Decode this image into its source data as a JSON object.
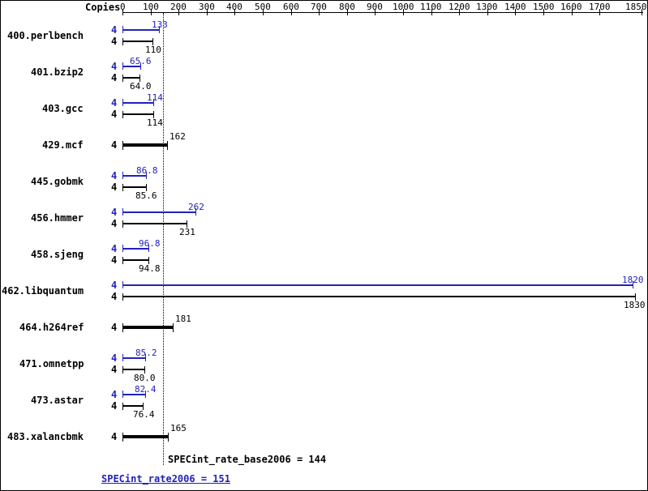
{
  "chart_data": {
    "type": "bar",
    "orientation": "horizontal",
    "copies_label": "Copies",
    "xlim": [
      0,
      1850
    ],
    "axis_ticks": [
      0,
      100,
      200,
      300,
      400,
      500,
      600,
      700,
      800,
      900,
      1000,
      1100,
      1200,
      1300,
      1400,
      1500,
      1600,
      1700,
      1850
    ],
    "colors": {
      "peak": "#2222bb",
      "base": "#000000"
    },
    "benchmarks": [
      {
        "name": "400.perlbench",
        "copies": 4,
        "peak": 133,
        "peak_label": "133",
        "base": 110,
        "base_label": "110"
      },
      {
        "name": "401.bzip2",
        "copies": 4,
        "peak": 65.6,
        "peak_label": "65.6",
        "base": 64.0,
        "base_label": "64.0"
      },
      {
        "name": "403.gcc",
        "copies": 4,
        "peak": 114,
        "peak_label": "114",
        "base": 114,
        "base_label": "114"
      },
      {
        "name": "429.mcf",
        "copies": 4,
        "basepeak": 162,
        "basepeak_label": "162"
      },
      {
        "name": "445.gobmk",
        "copies": 4,
        "peak": 86.8,
        "peak_label": "86.8",
        "base": 85.6,
        "base_label": "85.6"
      },
      {
        "name": "456.hmmer",
        "copies": 4,
        "peak": 262,
        "peak_label": "262",
        "base": 231,
        "base_label": "231"
      },
      {
        "name": "458.sjeng",
        "copies": 4,
        "peak": 96.8,
        "peak_label": "96.8",
        "base": 94.8,
        "base_label": "94.8"
      },
      {
        "name": "462.libquantum",
        "copies": 4,
        "peak": 1820,
        "peak_label": "1820",
        "base": 1830,
        "base_label": "1830"
      },
      {
        "name": "464.h264ref",
        "copies": 4,
        "basepeak": 181,
        "basepeak_label": "181"
      },
      {
        "name": "471.omnetpp",
        "copies": 4,
        "peak": 85.2,
        "peak_label": "85.2",
        "base": 80.0,
        "base_label": "80.0"
      },
      {
        "name": "473.astar",
        "copies": 4,
        "peak": 82.4,
        "peak_label": "82.4",
        "base": 76.4,
        "base_label": "76.4"
      },
      {
        "name": "483.xalancbmk",
        "copies": 4,
        "basepeak": 165,
        "basepeak_label": "165"
      }
    ],
    "footer": {
      "base_text": "SPECint_rate_base2006 = 144",
      "base_value": 144,
      "peak_text": "SPECint_rate2006 = 151",
      "peak_value": 151
    }
  }
}
